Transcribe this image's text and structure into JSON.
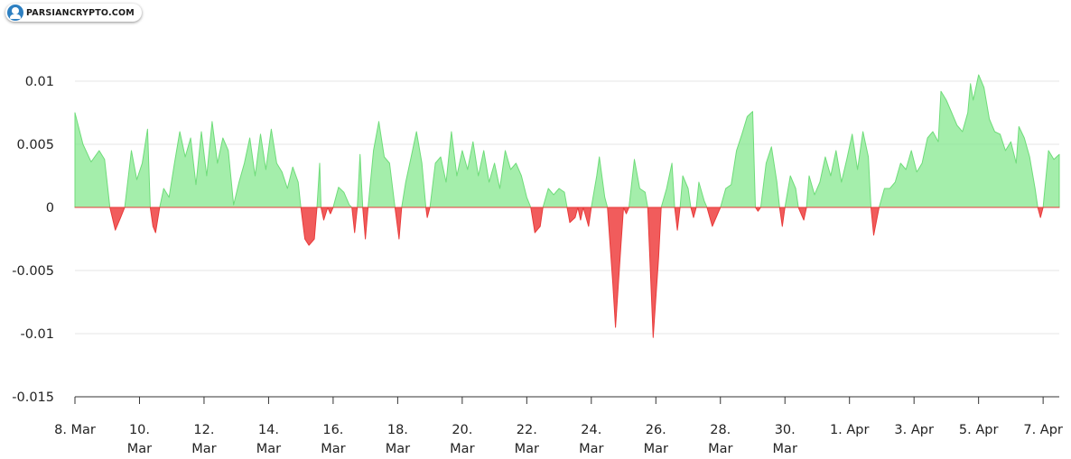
{
  "watermark": {
    "text": "PARSIANCRYPTO.COM"
  },
  "chart_data": {
    "type": "area",
    "positive_color": "#7ee787",
    "negative_color": "#f04a4a",
    "ylim": [
      -0.015,
      0.015
    ],
    "yticks": [
      {
        "value": 0.01,
        "label": "0.01"
      },
      {
        "value": 0.005,
        "label": "0.005"
      },
      {
        "value": 0,
        "label": "0"
      },
      {
        "value": -0.005,
        "label": "-0.005"
      },
      {
        "value": -0.01,
        "label": "-0.01"
      },
      {
        "value": -0.015,
        "label": "-0.015"
      }
    ],
    "xlim": [
      "2024-03-08",
      "2024-04-07T12:00"
    ],
    "xticks": [
      {
        "date": "2024-03-08",
        "lines": [
          "8. Mar"
        ]
      },
      {
        "date": "2024-03-10",
        "lines": [
          "10.",
          "Mar"
        ]
      },
      {
        "date": "2024-03-12",
        "lines": [
          "12.",
          "Mar"
        ]
      },
      {
        "date": "2024-03-14",
        "lines": [
          "14.",
          "Mar"
        ]
      },
      {
        "date": "2024-03-16",
        "lines": [
          "16.",
          "Mar"
        ]
      },
      {
        "date": "2024-03-18",
        "lines": [
          "18.",
          "Mar"
        ]
      },
      {
        "date": "2024-03-20",
        "lines": [
          "20.",
          "Mar"
        ]
      },
      {
        "date": "2024-03-22",
        "lines": [
          "22.",
          "Mar"
        ]
      },
      {
        "date": "2024-03-24",
        "lines": [
          "24.",
          "Mar"
        ]
      },
      {
        "date": "2024-03-26",
        "lines": [
          "26.",
          "Mar"
        ]
      },
      {
        "date": "2024-03-28",
        "lines": [
          "28.",
          "Mar"
        ]
      },
      {
        "date": "2024-03-30",
        "lines": [
          "30.",
          "Mar"
        ]
      },
      {
        "date": "2024-04-01",
        "lines": [
          "1. Apr"
        ]
      },
      {
        "date": "2024-04-03",
        "lines": [
          "3. Apr"
        ]
      },
      {
        "date": "2024-04-05",
        "lines": [
          "5. Apr"
        ]
      },
      {
        "date": "2024-04-07",
        "lines": [
          "7. Apr"
        ]
      }
    ],
    "series": [
      {
        "values": [
          [
            "2024-03-08T00:00",
            0.0075
          ],
          [
            "2024-03-08T06:00",
            0.005
          ],
          [
            "2024-03-08T12:00",
            0.0036
          ],
          [
            "2024-03-08T18:00",
            0.0045
          ],
          [
            "2024-03-08T22:00",
            0.0038
          ],
          [
            "2024-03-09T02:00",
            0.0
          ],
          [
            "2024-03-09T06:00",
            -0.0018
          ],
          [
            "2024-03-09T10:00",
            -0.0008
          ],
          [
            "2024-03-09T13:00",
            0.0
          ],
          [
            "2024-03-09T18:00",
            0.0045
          ],
          [
            "2024-03-09T22:00",
            0.0022
          ],
          [
            "2024-03-10T02:00",
            0.0035
          ],
          [
            "2024-03-10T06:00",
            0.0062
          ],
          [
            "2024-03-10T08:00",
            0.0
          ],
          [
            "2024-03-10T10:00",
            -0.0015
          ],
          [
            "2024-03-10T12:00",
            -0.002
          ],
          [
            "2024-03-10T15:00",
            0.0
          ],
          [
            "2024-03-10T18:00",
            0.0015
          ],
          [
            "2024-03-10T22:00",
            0.0008
          ],
          [
            "2024-03-11T02:00",
            0.0035
          ],
          [
            "2024-03-11T06:00",
            0.006
          ],
          [
            "2024-03-11T10:00",
            0.004
          ],
          [
            "2024-03-11T14:00",
            0.0055
          ],
          [
            "2024-03-11T18:00",
            0.0018
          ],
          [
            "2024-03-11T22:00",
            0.006
          ],
          [
            "2024-03-12T02:00",
            0.0025
          ],
          [
            "2024-03-12T06:00",
            0.0068
          ],
          [
            "2024-03-12T10:00",
            0.0035
          ],
          [
            "2024-03-12T14:00",
            0.0055
          ],
          [
            "2024-03-12T18:00",
            0.0045
          ],
          [
            "2024-03-12T22:00",
            0.0002
          ],
          [
            "2024-03-13T02:00",
            0.002
          ],
          [
            "2024-03-13T06:00",
            0.0035
          ],
          [
            "2024-03-13T10:00",
            0.0055
          ],
          [
            "2024-03-13T14:00",
            0.0025
          ],
          [
            "2024-03-13T18:00",
            0.0058
          ],
          [
            "2024-03-13T22:00",
            0.003
          ],
          [
            "2024-03-14T02:00",
            0.0062
          ],
          [
            "2024-03-14T06:00",
            0.0035
          ],
          [
            "2024-03-14T10:00",
            0.0028
          ],
          [
            "2024-03-14T14:00",
            0.0015
          ],
          [
            "2024-03-14T18:00",
            0.0032
          ],
          [
            "2024-03-14T22:00",
            0.002
          ],
          [
            "2024-03-15T00:00",
            0.0
          ],
          [
            "2024-03-15T03:00",
            -0.0025
          ],
          [
            "2024-03-15T06:00",
            -0.003
          ],
          [
            "2024-03-15T10:00",
            -0.0025
          ],
          [
            "2024-03-15T12:00",
            0.0
          ],
          [
            "2024-03-15T14:00",
            0.0035
          ],
          [
            "2024-03-15T15:00",
            0.0
          ],
          [
            "2024-03-15T17:00",
            -0.001
          ],
          [
            "2024-03-15T20:00",
            0.0
          ],
          [
            "2024-03-15T22:00",
            -0.0005
          ],
          [
            "2024-03-16T00:00",
            0.0
          ],
          [
            "2024-03-16T04:00",
            0.0016
          ],
          [
            "2024-03-16T08:00",
            0.0012
          ],
          [
            "2024-03-16T12:00",
            0.0002
          ],
          [
            "2024-03-16T14:00",
            0.0
          ],
          [
            "2024-03-16T16:00",
            -0.002
          ],
          [
            "2024-03-16T18:00",
            0.0
          ],
          [
            "2024-03-16T20:00",
            0.0042
          ],
          [
            "2024-03-16T22:00",
            0.0
          ],
          [
            "2024-03-17T00:00",
            -0.0025
          ],
          [
            "2024-03-17T02:00",
            0.0
          ],
          [
            "2024-03-17T06:00",
            0.0045
          ],
          [
            "2024-03-17T10:00",
            0.0068
          ],
          [
            "2024-03-17T14:00",
            0.004
          ],
          [
            "2024-03-17T18:00",
            0.0035
          ],
          [
            "2024-03-17T22:00",
            0.0
          ],
          [
            "2024-03-18T01:00",
            -0.0025
          ],
          [
            "2024-03-18T03:00",
            0.0
          ],
          [
            "2024-03-18T06:00",
            0.002
          ],
          [
            "2024-03-18T10:00",
            0.004
          ],
          [
            "2024-03-18T14:00",
            0.006
          ],
          [
            "2024-03-18T18:00",
            0.0035
          ],
          [
            "2024-03-18T21:00",
            0.0
          ],
          [
            "2024-03-18T22:00",
            -0.0008
          ],
          [
            "2024-03-19T00:00",
            0.0
          ],
          [
            "2024-03-19T04:00",
            0.0035
          ],
          [
            "2024-03-19T08:00",
            0.004
          ],
          [
            "2024-03-19T12:00",
            0.002
          ],
          [
            "2024-03-19T16:00",
            0.006
          ],
          [
            "2024-03-19T20:00",
            0.0025
          ],
          [
            "2024-03-20T00:00",
            0.0045
          ],
          [
            "2024-03-20T04:00",
            0.003
          ],
          [
            "2024-03-20T08:00",
            0.0052
          ],
          [
            "2024-03-20T12:00",
            0.0025
          ],
          [
            "2024-03-20T16:00",
            0.0045
          ],
          [
            "2024-03-20T20:00",
            0.002
          ],
          [
            "2024-03-21T00:00",
            0.0035
          ],
          [
            "2024-03-21T04:00",
            0.0015
          ],
          [
            "2024-03-21T08:00",
            0.0045
          ],
          [
            "2024-03-21T12:00",
            0.003
          ],
          [
            "2024-03-21T16:00",
            0.0035
          ],
          [
            "2024-03-21T20:00",
            0.0025
          ],
          [
            "2024-03-22T00:00",
            0.0008
          ],
          [
            "2024-03-22T03:00",
            0.0
          ],
          [
            "2024-03-22T06:00",
            -0.002
          ],
          [
            "2024-03-22T10:00",
            -0.0015
          ],
          [
            "2024-03-22T12:00",
            0.0
          ],
          [
            "2024-03-22T16:00",
            0.0015
          ],
          [
            "2024-03-22T20:00",
            0.001
          ],
          [
            "2024-03-23T00:00",
            0.0015
          ],
          [
            "2024-03-23T04:00",
            0.0012
          ],
          [
            "2024-03-23T06:00",
            0.0
          ],
          [
            "2024-03-23T08:00",
            -0.0012
          ],
          [
            "2024-03-23T12:00",
            -0.0008
          ],
          [
            "2024-03-23T14:00",
            0.0
          ],
          [
            "2024-03-23T16:00",
            -0.001
          ],
          [
            "2024-03-23T18:00",
            0.0
          ],
          [
            "2024-03-23T22:00",
            -0.0015
          ],
          [
            "2024-03-24T00:00",
            0.0
          ],
          [
            "2024-03-24T04:00",
            0.0025
          ],
          [
            "2024-03-24T06:00",
            0.004
          ],
          [
            "2024-03-24T10:00",
            0.0008
          ],
          [
            "2024-03-24T12:00",
            0.0
          ],
          [
            "2024-03-24T16:00",
            -0.006
          ],
          [
            "2024-03-24T18:00",
            -0.0095
          ],
          [
            "2024-03-24T22:00",
            -0.003
          ],
          [
            "2024-03-25T00:00",
            0.0
          ],
          [
            "2024-03-25T02:00",
            -0.0005
          ],
          [
            "2024-03-25T04:00",
            0.0
          ],
          [
            "2024-03-25T08:00",
            0.0038
          ],
          [
            "2024-03-25T12:00",
            0.0015
          ],
          [
            "2024-03-25T16:00",
            0.0012
          ],
          [
            "2024-03-25T18:00",
            0.0
          ],
          [
            "2024-03-25T22:00",
            -0.0103
          ],
          [
            "2024-03-26T02:00",
            -0.004
          ],
          [
            "2024-03-26T04:00",
            0.0
          ],
          [
            "2024-03-26T08:00",
            0.0015
          ],
          [
            "2024-03-26T12:00",
            0.0035
          ],
          [
            "2024-03-26T14:00",
            0.0
          ],
          [
            "2024-03-26T16:00",
            -0.0018
          ],
          [
            "2024-03-26T18:00",
            0.0
          ],
          [
            "2024-03-26T20:00",
            0.0025
          ],
          [
            "2024-03-27T00:00",
            0.0015
          ],
          [
            "2024-03-27T02:00",
            0.0
          ],
          [
            "2024-03-27T04:00",
            -0.0008
          ],
          [
            "2024-03-27T06:00",
            0.0
          ],
          [
            "2024-03-27T08:00",
            0.002
          ],
          [
            "2024-03-27T12:00",
            0.0005
          ],
          [
            "2024-03-27T14:00",
            0.0
          ],
          [
            "2024-03-27T18:00",
            -0.0015
          ],
          [
            "2024-03-27T22:00",
            -0.0005
          ],
          [
            "2024-03-28T00:00",
            0.0
          ],
          [
            "2024-03-28T04:00",
            0.0015
          ],
          [
            "2024-03-28T08:00",
            0.0018
          ],
          [
            "2024-03-28T12:00",
            0.0045
          ],
          [
            "2024-03-28T16:00",
            0.0058
          ],
          [
            "2024-03-28T20:00",
            0.0072
          ],
          [
            "2024-03-29T00:00",
            0.0076
          ],
          [
            "2024-03-29T02:00",
            0.0
          ],
          [
            "2024-03-29T04:00",
            -0.0003
          ],
          [
            "2024-03-29T06:00",
            0.0
          ],
          [
            "2024-03-29T10:00",
            0.0035
          ],
          [
            "2024-03-29T14:00",
            0.0048
          ],
          [
            "2024-03-29T18:00",
            0.002
          ],
          [
            "2024-03-29T20:00",
            0.0
          ],
          [
            "2024-03-29T22:00",
            -0.0015
          ],
          [
            "2024-03-30T00:00",
            0.0
          ],
          [
            "2024-03-30T04:00",
            0.0025
          ],
          [
            "2024-03-30T08:00",
            0.0015
          ],
          [
            "2024-03-30T10:00",
            0.0
          ],
          [
            "2024-03-30T14:00",
            -0.001
          ],
          [
            "2024-03-30T16:00",
            0.0
          ],
          [
            "2024-03-30T18:00",
            0.0025
          ],
          [
            "2024-03-30T22:00",
            0.001
          ],
          [
            "2024-03-31T02:00",
            0.002
          ],
          [
            "2024-03-31T06:00",
            0.004
          ],
          [
            "2024-03-31T10:00",
            0.0025
          ],
          [
            "2024-03-31T14:00",
            0.0045
          ],
          [
            "2024-03-31T18:00",
            0.002
          ],
          [
            "2024-03-31T22:00",
            0.0038
          ],
          [
            "2024-04-01T02:00",
            0.0058
          ],
          [
            "2024-04-01T06:00",
            0.003
          ],
          [
            "2024-04-01T10:00",
            0.006
          ],
          [
            "2024-04-01T14:00",
            0.004
          ],
          [
            "2024-04-01T16:00",
            0.0
          ],
          [
            "2024-04-01T18:00",
            -0.0022
          ],
          [
            "2024-04-01T22:00",
            0.0
          ],
          [
            "2024-04-02T02:00",
            0.0015
          ],
          [
            "2024-04-02T06:00",
            0.0015
          ],
          [
            "2024-04-02T10:00",
            0.002
          ],
          [
            "2024-04-02T14:00",
            0.0035
          ],
          [
            "2024-04-02T18:00",
            0.003
          ],
          [
            "2024-04-02T22:00",
            0.0045
          ],
          [
            "2024-04-03T02:00",
            0.0028
          ],
          [
            "2024-04-03T06:00",
            0.0035
          ],
          [
            "2024-04-03T10:00",
            0.0055
          ],
          [
            "2024-04-03T14:00",
            0.006
          ],
          [
            "2024-04-03T18:00",
            0.0052
          ],
          [
            "2024-04-03T20:00",
            0.0092
          ],
          [
            "2024-04-04T00:00",
            0.0085
          ],
          [
            "2024-04-04T04:00",
            0.0075
          ],
          [
            "2024-04-04T08:00",
            0.0065
          ],
          [
            "2024-04-04T12:00",
            0.006
          ],
          [
            "2024-04-04T16:00",
            0.0075
          ],
          [
            "2024-04-04T18:00",
            0.0098
          ],
          [
            "2024-04-04T20:00",
            0.0085
          ],
          [
            "2024-04-05T00:00",
            0.0105
          ],
          [
            "2024-04-05T04:00",
            0.0095
          ],
          [
            "2024-04-05T08:00",
            0.007
          ],
          [
            "2024-04-05T12:00",
            0.006
          ],
          [
            "2024-04-05T16:00",
            0.0058
          ],
          [
            "2024-04-05T20:00",
            0.0045
          ],
          [
            "2024-04-06T00:00",
            0.0052
          ],
          [
            "2024-04-06T04:00",
            0.0035
          ],
          [
            "2024-04-06T06:00",
            0.0064
          ],
          [
            "2024-04-06T10:00",
            0.0055
          ],
          [
            "2024-04-06T14:00",
            0.004
          ],
          [
            "2024-04-06T18:00",
            0.0015
          ],
          [
            "2024-04-06T20:00",
            0.0
          ],
          [
            "2024-04-06T22:00",
            -0.0008
          ],
          [
            "2024-04-07T00:00",
            0.0
          ],
          [
            "2024-04-07T04:00",
            0.0045
          ],
          [
            "2024-04-07T08:00",
            0.0038
          ],
          [
            "2024-04-07T12:00",
            0.0042
          ]
        ]
      }
    ]
  }
}
